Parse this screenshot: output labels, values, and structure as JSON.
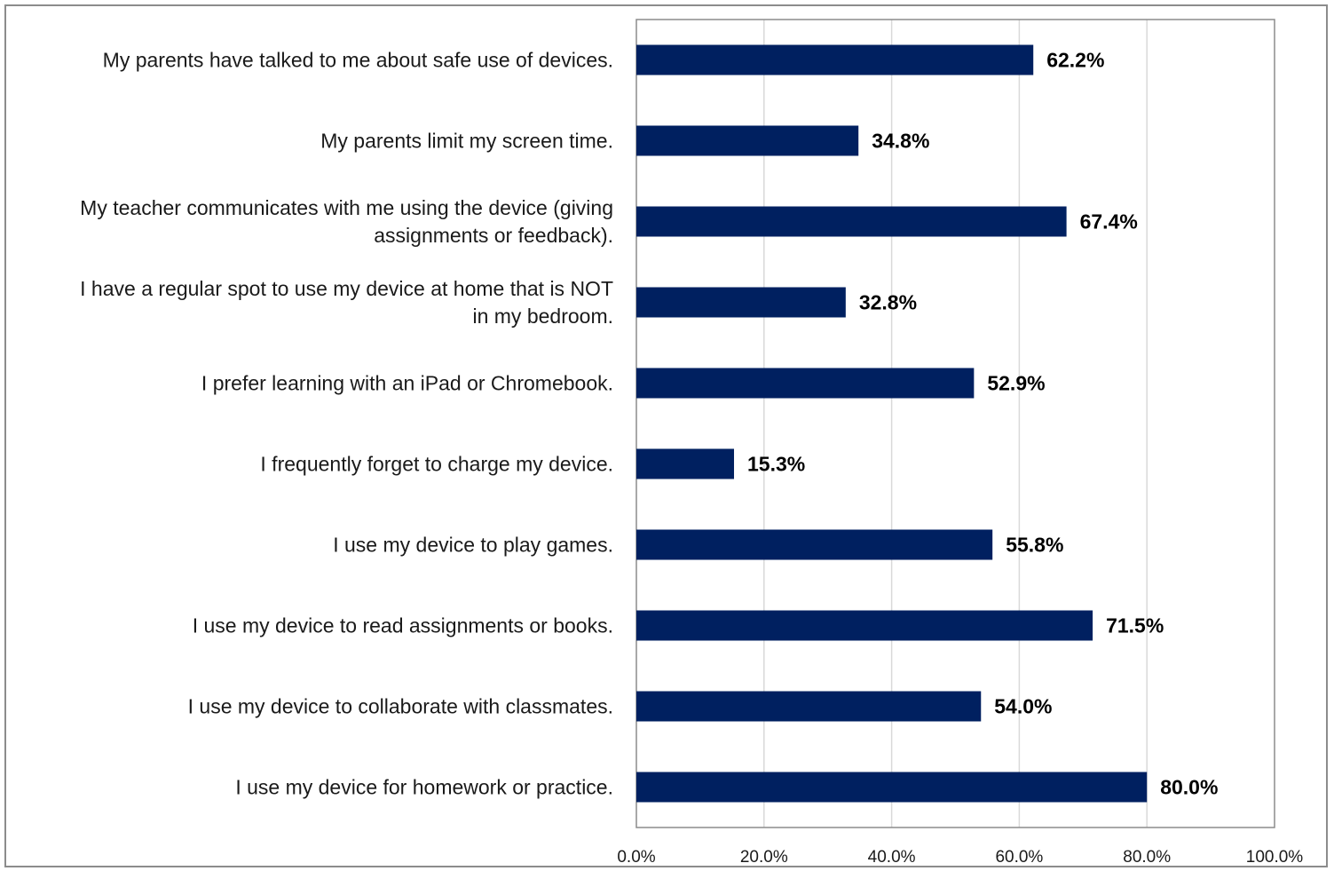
{
  "chart_data": {
    "type": "bar",
    "orientation": "horizontal",
    "categories": [
      "My parents have talked to me about safe use of devices.",
      "My parents limit my screen time.",
      "My teacher communicates with me using the device (giving assignments or feedback).",
      "I have a regular spot to use my device at home that is NOT in my bedroom.",
      "I prefer learning with an iPad or Chromebook.",
      "I frequently forget to charge my device.",
      "I use my device to play games.",
      "I use my device to read assignments or books.",
      "I use my device to collaborate with classmates.",
      "I use my device for homework or practice."
    ],
    "category_lines": [
      [
        "My parents have talked to me about safe use of devices."
      ],
      [
        "My parents limit my screen time."
      ],
      [
        "My teacher communicates with me using the device (giving",
        "assignments or feedback)."
      ],
      [
        "I have a regular spot to use my device at home that is NOT",
        "in my bedroom."
      ],
      [
        "I prefer learning with an iPad or Chromebook."
      ],
      [
        "I frequently forget to charge my device."
      ],
      [
        "I use my device to play games."
      ],
      [
        "I use my device to read assignments or books."
      ],
      [
        "I use my device to collaborate with classmates."
      ],
      [
        "I use my device for homework or practice."
      ]
    ],
    "values": [
      62.2,
      34.8,
      67.4,
      32.8,
      52.9,
      15.3,
      55.8,
      71.5,
      54.0,
      80.0
    ],
    "data_labels": [
      "62.2%",
      "34.8%",
      "67.4%",
      "32.8%",
      "52.9%",
      "15.3%",
      "55.8%",
      "71.5%",
      "54.0%",
      "80.0%"
    ],
    "x_ticks": [
      0,
      20,
      40,
      60,
      80,
      100
    ],
    "x_tick_labels": [
      "0.0%",
      "20.0%",
      "40.0%",
      "60.0%",
      "80.0%",
      "100.0%"
    ],
    "xlim": [
      0,
      100
    ],
    "title": "",
    "xlabel": "",
    "ylabel": "",
    "grid": "vertical",
    "legend": "none",
    "colors": {
      "bar": "#002060",
      "gridline": "#d9d9d9",
      "axis": "#8c8c8c",
      "frame": "#8c8c8c",
      "text": "#1a1a1a"
    }
  }
}
